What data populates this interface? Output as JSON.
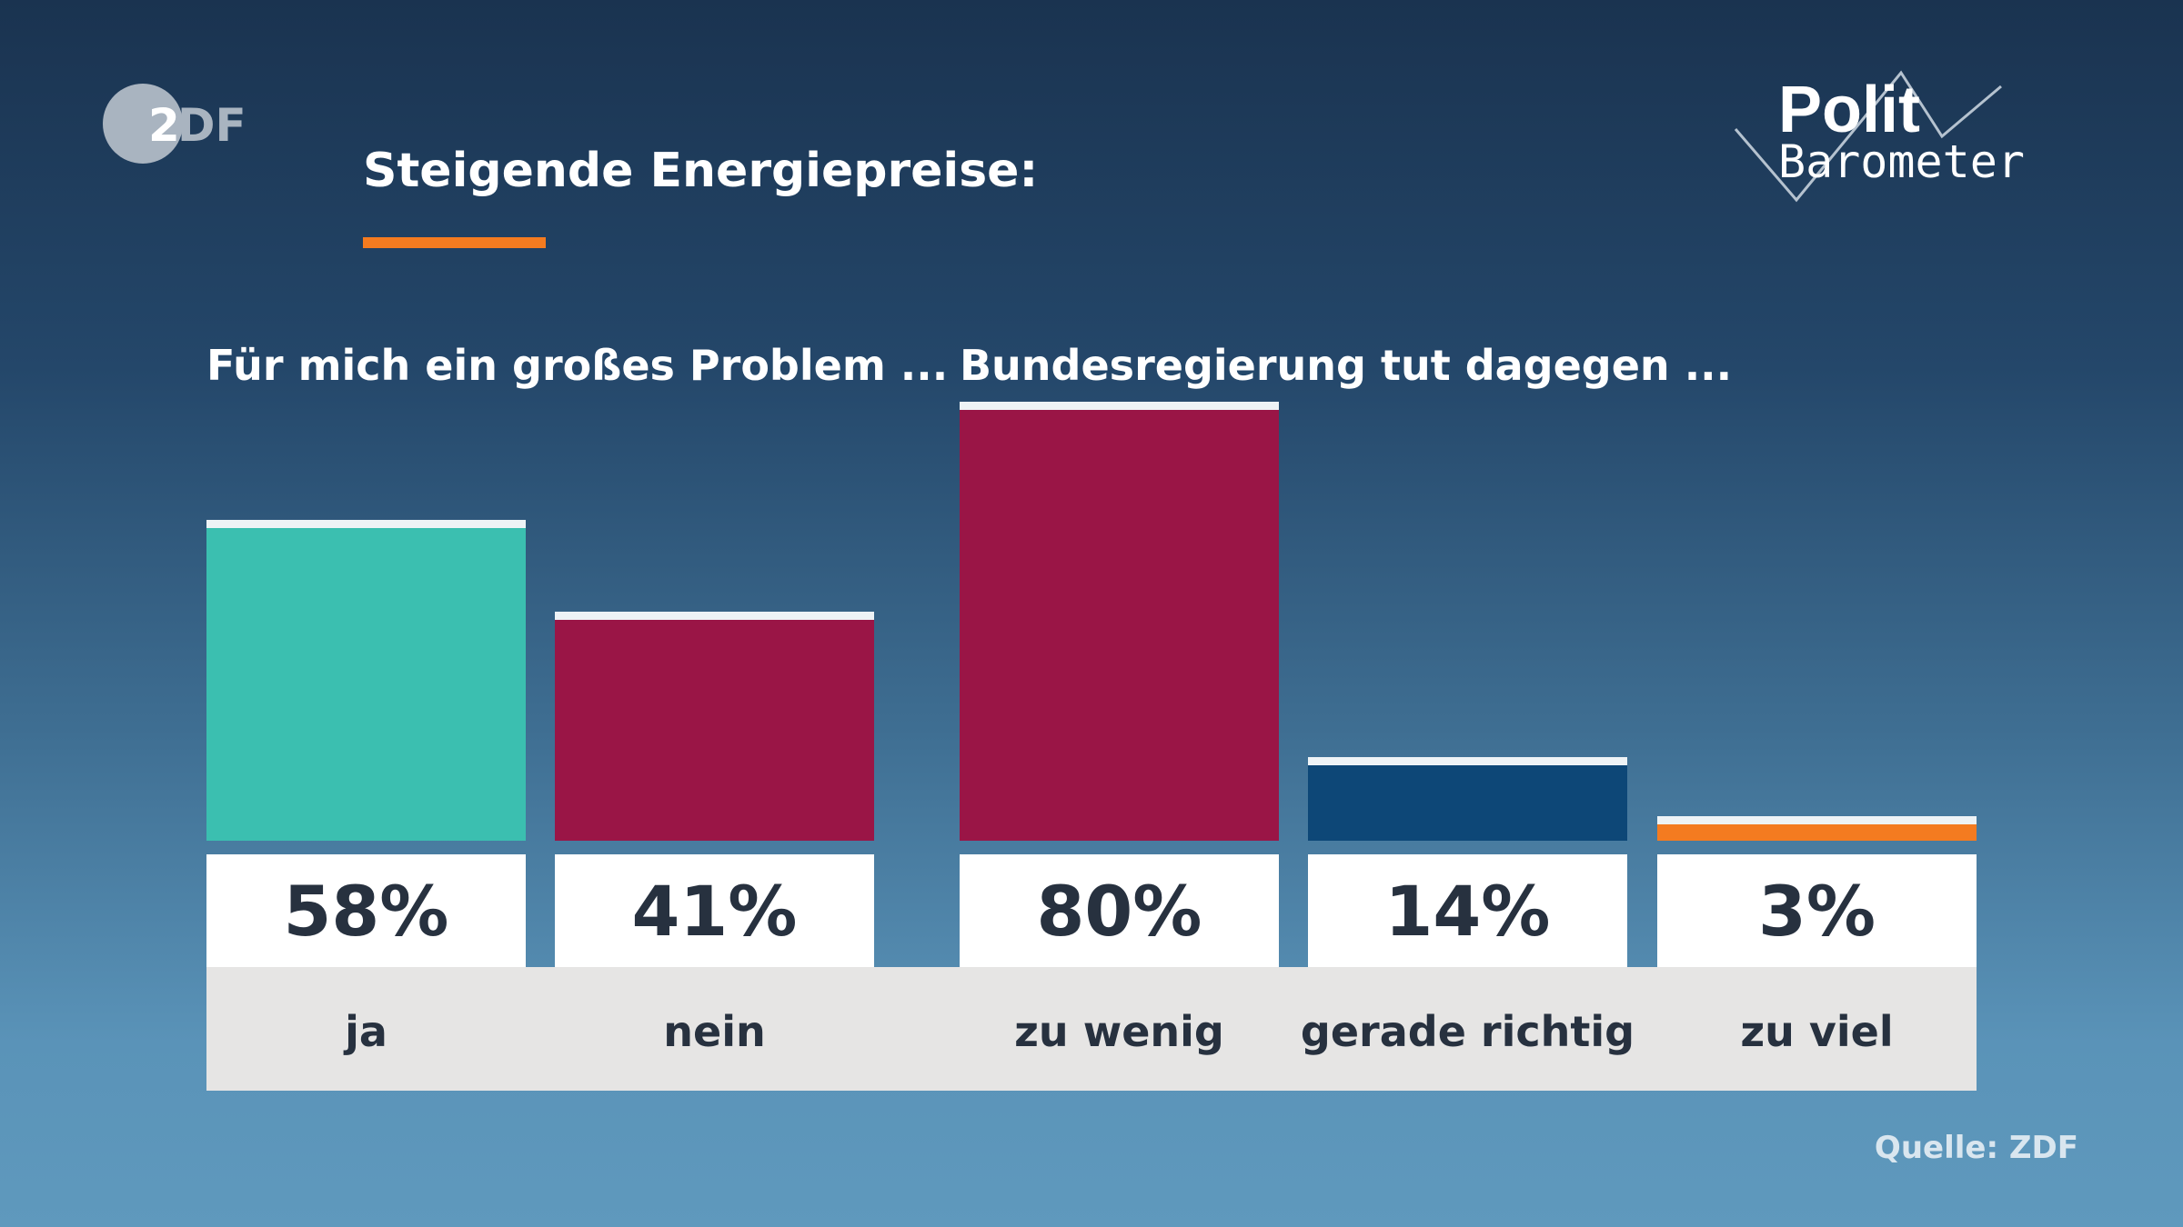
{
  "logos": {
    "broadcaster": "ZDF",
    "program_line1": "Polit",
    "program_line2": "Barometer"
  },
  "chart_data": {
    "type": "bar",
    "title": "Steigende Energiepreise:",
    "ylim": [
      0,
      100
    ],
    "grid": false,
    "groups": [
      {
        "heading": "Für mich ein großes Problem ...",
        "categories": [
          "ja",
          "nein"
        ],
        "values": [
          58,
          41
        ],
        "labels": [
          "58%",
          "41%"
        ],
        "colors": [
          "#3bbfb0",
          "#9a1546"
        ]
      },
      {
        "heading": "Bundesregierung tut dagegen ...",
        "categories": [
          "zu wenig",
          "gerade richtig",
          "zu viel"
        ],
        "values": [
          80,
          14,
          3
        ],
        "labels": [
          "80%",
          "14%",
          "3%"
        ],
        "colors": [
          "#9a1546",
          "#0d4777",
          "#f47b20"
        ]
      }
    ],
    "source": "Quelle: ZDF"
  },
  "colors": {
    "accent": "#f47b20",
    "background_top": "#1a3350",
    "background_bottom": "#5f99bd"
  }
}
